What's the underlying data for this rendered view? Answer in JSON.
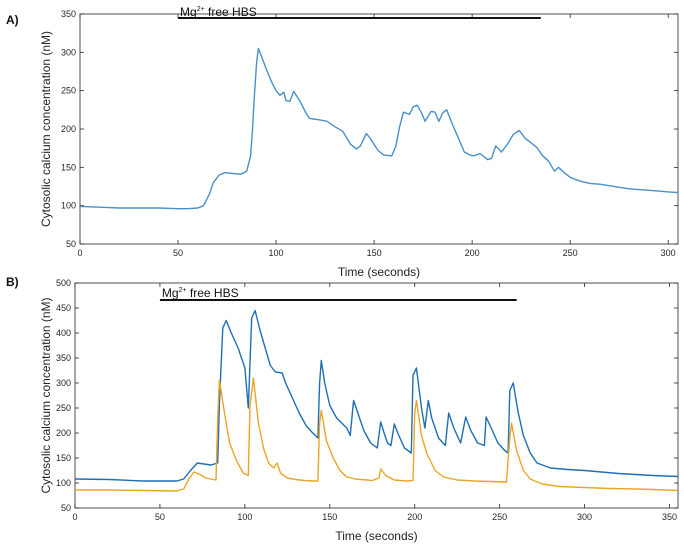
{
  "chart_data": [
    {
      "panel_label": "A)",
      "type": "line",
      "xlabel": "Time (seconds)",
      "ylabel": "Cytosolic calcium concentration (nM)",
      "xlim": [
        0,
        305
      ],
      "ylim": [
        50,
        350
      ],
      "x_ticks": [
        0,
        50,
        100,
        150,
        200,
        250,
        300
      ],
      "y_ticks": [
        50,
        100,
        150,
        200,
        250,
        300,
        350
      ],
      "grid": false,
      "annotation": {
        "prefix": "Mg",
        "superscript": "2+",
        "suffix": " free HBS",
        "bar_start": 50,
        "bar_end": 235
      },
      "series": [
        {
          "color": "#4a90c8",
          "points": [
            [
              0,
              99
            ],
            [
              10,
              98
            ],
            [
              20,
              97
            ],
            [
              30,
              97
            ],
            [
              40,
              97
            ],
            [
              50,
              96
            ],
            [
              55,
              96
            ],
            [
              60,
              97
            ],
            [
              63,
              100
            ],
            [
              66,
              115
            ],
            [
              68,
              130
            ],
            [
              71,
              140
            ],
            [
              74,
              143
            ],
            [
              78,
              142
            ],
            [
              82,
              141
            ],
            [
              85,
              145
            ],
            [
              87,
              165
            ],
            [
              88,
              200
            ],
            [
              89,
              245
            ],
            [
              90,
              285
            ],
            [
              91,
              305
            ],
            [
              93,
              292
            ],
            [
              95,
              278
            ],
            [
              98,
              260
            ],
            [
              100,
              250
            ],
            [
              102,
              244
            ],
            [
              104,
              248
            ],
            [
              105,
              237
            ],
            [
              107,
              236
            ],
            [
              109,
              249
            ],
            [
              112,
              237
            ],
            [
              115,
              222
            ],
            [
              117,
              214
            ],
            [
              119,
              213
            ],
            [
              122,
              212
            ],
            [
              126,
              210
            ],
            [
              130,
              203
            ],
            [
              134,
              197
            ],
            [
              138,
              180
            ],
            [
              141,
              174
            ],
            [
              143,
              178
            ],
            [
              146,
              194
            ],
            [
              148,
              188
            ],
            [
              152,
              172
            ],
            [
              155,
              166
            ],
            [
              159,
              165
            ],
            [
              161,
              177
            ],
            [
              163,
              203
            ],
            [
              165,
              222
            ],
            [
              168,
              219
            ],
            [
              170,
              229
            ],
            [
              172,
              231
            ],
            [
              174,
              222
            ],
            [
              176,
              210
            ],
            [
              179,
              223
            ],
            [
              181,
              222
            ],
            [
              183,
              210
            ],
            [
              185,
              221
            ],
            [
              187,
              225
            ],
            [
              190,
              206
            ],
            [
              193,
              188
            ],
            [
              196,
              170
            ],
            [
              199,
              166
            ],
            [
              201,
              165
            ],
            [
              204,
              168
            ],
            [
              208,
              160
            ],
            [
              210,
              162
            ],
            [
              212,
              178
            ],
            [
              215,
              170
            ],
            [
              218,
              180
            ],
            [
              221,
              193
            ],
            [
              224,
              198
            ],
            [
              227,
              188
            ],
            [
              230,
              182
            ],
            [
              233,
              176
            ],
            [
              236,
              165
            ],
            [
              239,
              158
            ],
            [
              242,
              145
            ],
            [
              244,
              150
            ],
            [
              247,
              143
            ],
            [
              250,
              137
            ],
            [
              255,
              132
            ],
            [
              260,
              129
            ],
            [
              265,
              128
            ],
            [
              270,
              126
            ],
            [
              275,
              124
            ],
            [
              280,
              122
            ],
            [
              285,
              121
            ],
            [
              290,
              120
            ],
            [
              295,
              119
            ],
            [
              300,
              118
            ],
            [
              305,
              117
            ]
          ]
        }
      ]
    },
    {
      "panel_label": "B)",
      "type": "line",
      "xlabel": "Time (seconds)",
      "ylabel": "Cytosolic calcium concentration (nM)",
      "xlim": [
        0,
        355
      ],
      "ylim": [
        50,
        500
      ],
      "x_ticks": [
        0,
        50,
        100,
        150,
        200,
        250,
        300,
        350
      ],
      "y_ticks": [
        50,
        100,
        150,
        200,
        250,
        300,
        350,
        400,
        450,
        500
      ],
      "grid": false,
      "annotation": {
        "prefix": "Mg",
        "superscript": "2+",
        "suffix": " free HBS",
        "bar_start": 50,
        "bar_end": 260
      },
      "series": [
        {
          "color": "#1f6fb2",
          "points": [
            [
              0,
              108
            ],
            [
              20,
              107
            ],
            [
              40,
              104
            ],
            [
              60,
              104
            ],
            [
              64,
              108
            ],
            [
              68,
              125
            ],
            [
              72,
              140
            ],
            [
              76,
              138
            ],
            [
              80,
              136
            ],
            [
              84,
              140
            ],
            [
              85,
              260
            ],
            [
              87,
              410
            ],
            [
              89,
              425
            ],
            [
              92,
              400
            ],
            [
              96,
              370
            ],
            [
              100,
              330
            ],
            [
              102,
              250
            ],
            [
              104,
              430
            ],
            [
              106,
              445
            ],
            [
              109,
              405
            ],
            [
              112,
              370
            ],
            [
              115,
              335
            ],
            [
              118,
              322
            ],
            [
              122,
              320
            ],
            [
              124,
              300
            ],
            [
              128,
              270
            ],
            [
              132,
              240
            ],
            [
              136,
              215
            ],
            [
              140,
              200
            ],
            [
              143,
              190
            ],
            [
              144,
              300
            ],
            [
              145,
              345
            ],
            [
              147,
              300
            ],
            [
              150,
              255
            ],
            [
              154,
              230
            ],
            [
              157,
              220
            ],
            [
              160,
              210
            ],
            [
              162,
              195
            ],
            [
              164,
              265
            ],
            [
              166,
              245
            ],
            [
              170,
              205
            ],
            [
              174,
              180
            ],
            [
              178,
              170
            ],
            [
              180,
              222
            ],
            [
              182,
              200
            ],
            [
              184,
              180
            ],
            [
              186,
              175
            ],
            [
              188,
              218
            ],
            [
              190,
              200
            ],
            [
              194,
              170
            ],
            [
              198,
              160
            ],
            [
              199,
              315
            ],
            [
              201,
              330
            ],
            [
              204,
              250
            ],
            [
              206,
              210
            ],
            [
              208,
              265
            ],
            [
              210,
              230
            ],
            [
              214,
              190
            ],
            [
              218,
              175
            ],
            [
              220,
              240
            ],
            [
              223,
              210
            ],
            [
              227,
              180
            ],
            [
              230,
              232
            ],
            [
              233,
              205
            ],
            [
              237,
              180
            ],
            [
              241,
              175
            ],
            [
              242,
              232
            ],
            [
              245,
              210
            ],
            [
              249,
              180
            ],
            [
              253,
              165
            ],
            [
              255,
              160
            ],
            [
              256,
              285
            ],
            [
              258,
              300
            ],
            [
              261,
              240
            ],
            [
              264,
              195
            ],
            [
              268,
              160
            ],
            [
              272,
              140
            ],
            [
              280,
              130
            ],
            [
              290,
              127
            ],
            [
              300,
              125
            ],
            [
              310,
              122
            ],
            [
              320,
              119
            ],
            [
              330,
              117
            ],
            [
              340,
              115
            ],
            [
              355,
              113
            ]
          ]
        },
        {
          "color": "#e8a628",
          "points": [
            [
              0,
              86
            ],
            [
              20,
              86
            ],
            [
              40,
              85
            ],
            [
              60,
              84
            ],
            [
              64,
              88
            ],
            [
              67,
              108
            ],
            [
              70,
              122
            ],
            [
              73,
              118
            ],
            [
              77,
              110
            ],
            [
              80,
              108
            ],
            [
              83,
              106
            ],
            [
              84,
              230
            ],
            [
              85,
              305
            ],
            [
              88,
              240
            ],
            [
              91,
              180
            ],
            [
              95,
              145
            ],
            [
              99,
              120
            ],
            [
              102,
              115
            ],
            [
              103,
              255
            ],
            [
              105,
              310
            ],
            [
              108,
              220
            ],
            [
              111,
              170
            ],
            [
              114,
              140
            ],
            [
              117,
              130
            ],
            [
              119,
              140
            ],
            [
              121,
              120
            ],
            [
              125,
              110
            ],
            [
              130,
              107
            ],
            [
              135,
              105
            ],
            [
              140,
              104
            ],
            [
              143,
              104
            ],
            [
              144,
              220
            ],
            [
              145,
              245
            ],
            [
              148,
              185
            ],
            [
              152,
              150
            ],
            [
              156,
              125
            ],
            [
              160,
              112
            ],
            [
              165,
              108
            ],
            [
              175,
              105
            ],
            [
              179,
              110
            ],
            [
              180,
              128
            ],
            [
              183,
              115
            ],
            [
              188,
              106
            ],
            [
              195,
              104
            ],
            [
              199,
              105
            ],
            [
              200,
              240
            ],
            [
              201,
              265
            ],
            [
              204,
              195
            ],
            [
              207,
              160
            ],
            [
              212,
              125
            ],
            [
              217,
              112
            ],
            [
              225,
              106
            ],
            [
              235,
              104
            ],
            [
              245,
              103
            ],
            [
              254,
              102
            ],
            [
              256,
              190
            ],
            [
              257,
              220
            ],
            [
              260,
              165
            ],
            [
              264,
              125
            ],
            [
              268,
              108
            ],
            [
              275,
              98
            ],
            [
              285,
              93
            ],
            [
              300,
              91
            ],
            [
              315,
              89
            ],
            [
              330,
              88
            ],
            [
              340,
              87
            ],
            [
              355,
              85
            ]
          ]
        }
      ]
    }
  ]
}
